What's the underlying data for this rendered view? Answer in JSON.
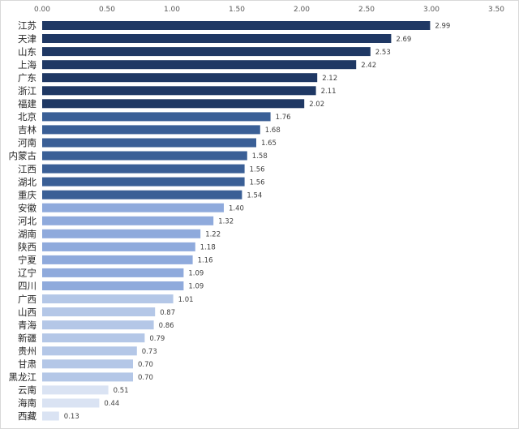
{
  "chart_data": {
    "type": "bar",
    "orientation": "horizontal",
    "title": "",
    "xlabel": "",
    "ylabel": "",
    "xlim": [
      0,
      3.5
    ],
    "xticks": [
      "0.00",
      "0.50",
      "1.00",
      "1.50",
      "2.00",
      "2.50",
      "3.00",
      "3.50"
    ],
    "xtick_values": [
      0,
      0.5,
      1.0,
      1.5,
      2.0,
      2.5,
      3.0,
      3.5
    ],
    "axis_position": "top",
    "grid": false,
    "legend": "none",
    "categories": [
      "江苏",
      "天津",
      "山东",
      "上海",
      "广东",
      "浙江",
      "福建",
      "北京",
      "吉林",
      "河南",
      "内蒙古",
      "江西",
      "湖北",
      "重庆",
      "安徽",
      "河北",
      "湖南",
      "陕西",
      "宁夏",
      "辽宁",
      "四川",
      "广西",
      "山西",
      "青海",
      "新疆",
      "贵州",
      "甘肃",
      "黑龙江",
      "云南",
      "海南",
      "西藏"
    ],
    "values": [
      2.99,
      2.69,
      2.53,
      2.42,
      2.12,
      2.11,
      2.02,
      1.76,
      1.68,
      1.65,
      1.58,
      1.56,
      1.56,
      1.54,
      1.4,
      1.32,
      1.22,
      1.18,
      1.16,
      1.09,
      1.09,
      1.01,
      0.87,
      0.86,
      0.79,
      0.73,
      0.7,
      0.7,
      0.51,
      0.44,
      0.13
    ],
    "value_labels": [
      "2.99",
      "2.69",
      "2.53",
      "2.42",
      "2.12",
      "2.11",
      "2.02",
      "1.76",
      "1.68",
      "1.65",
      "1.58",
      "1.56",
      "1.56",
      "1.54",
      "1.40",
      "1.32",
      "1.22",
      "1.18",
      "1.16",
      "1.09",
      "1.09",
      "1.01",
      "0.87",
      "0.86",
      "0.79",
      "0.73",
      "0.70",
      "0.70",
      "0.51",
      "0.44",
      "0.13"
    ],
    "colors": [
      "#1f3864",
      "#1f3864",
      "#1f3864",
      "#1f3864",
      "#1f3864",
      "#1f3864",
      "#1f3864",
      "#3a5f96",
      "#3a5f96",
      "#3a5f96",
      "#3a5f96",
      "#3a5f96",
      "#3a5f96",
      "#3a5f96",
      "#8faadc",
      "#8faadc",
      "#8faadc",
      "#8faadc",
      "#8faadc",
      "#8faadc",
      "#8faadc",
      "#b4c7e7",
      "#b4c7e7",
      "#b4c7e7",
      "#b4c7e7",
      "#b4c7e7",
      "#b4c7e7",
      "#b4c7e7",
      "#dae3f3",
      "#dae3f3",
      "#dae3f3"
    ]
  }
}
